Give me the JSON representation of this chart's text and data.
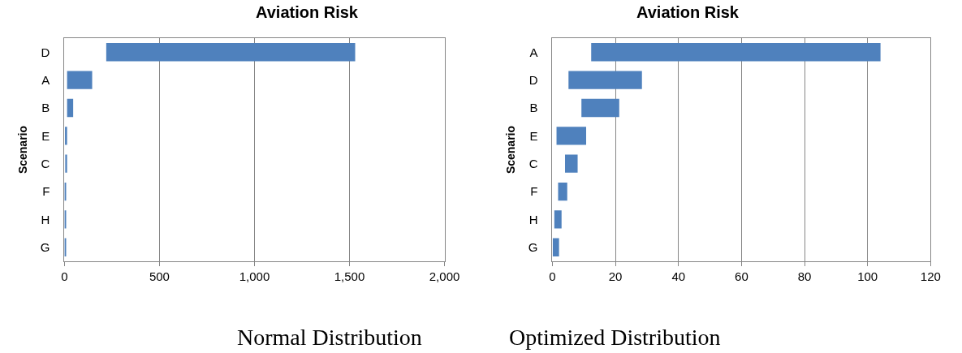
{
  "chart_data": [
    {
      "type": "bar",
      "title": "Aviation Risk",
      "ylabel": "Scenario",
      "orientation": "horizontal",
      "categories": [
        "D",
        "A",
        "B",
        "E",
        "C",
        "F",
        "H",
        "G"
      ],
      "values": [
        1310,
        132,
        32,
        11,
        8,
        8,
        8,
        8
      ],
      "base": [
        220,
        14,
        14,
        3,
        6,
        1,
        1,
        1
      ],
      "color": "#4f81bd",
      "xlim": [
        0,
        2000
      ],
      "xticks": [
        0,
        {
          "value": 500,
          "label": "500"
        },
        {
          "value": 1000,
          "label": "1,000"
        },
        {
          "value": 1500,
          "label": "1,500"
        },
        {
          "value": 2000,
          "label": "2,000"
        }
      ],
      "grid": "x",
      "annotations": [
        "Normal Distribution"
      ]
    },
    {
      "type": "bar",
      "title": "Aviation Risk",
      "ylabel": "Scenario",
      "orientation": "horizontal",
      "categories": [
        "A",
        "D",
        "B",
        "E",
        "C",
        "F",
        "H",
        "G"
      ],
      "values": [
        91.8,
        23.3,
        12.0,
        9.4,
        4.0,
        2.9,
        2.3,
        2.0
      ],
      "base": [
        12.3,
        5.1,
        9.2,
        1.3,
        4.0,
        1.8,
        0.6,
        0.1
      ],
      "color": "#4f81bd",
      "xlim": [
        0,
        120
      ],
      "xticks": [
        0,
        20,
        40,
        60,
        80,
        100,
        120
      ],
      "grid": "x",
      "annotations": [
        "Optimized Distribution"
      ]
    }
  ]
}
